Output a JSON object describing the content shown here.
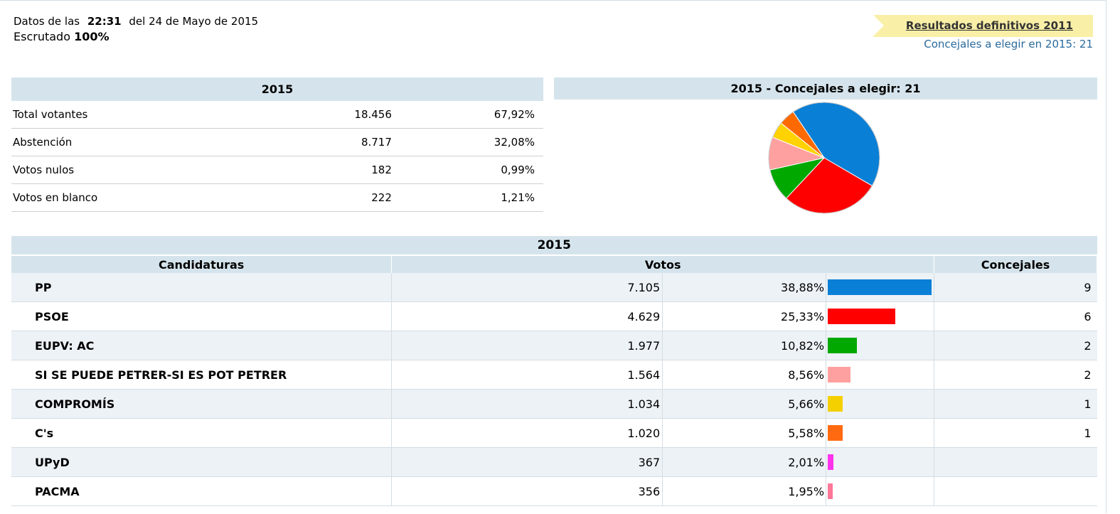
{
  "header": {
    "datos_prefix": "Datos de las",
    "time": "22:31",
    "datos_suffix": "del 24 de Mayo de 2015",
    "escrutado_label": "Escrutado",
    "escrutado_value": "100%",
    "ribbon_link": "Resultados definitivos 2011",
    "concejales_line": "Concejales a elegir en 2015: 21"
  },
  "summary": {
    "title": "2015",
    "rows": [
      {
        "label": "Total votantes",
        "value": "18.456",
        "pct": "67,92%"
      },
      {
        "label": "Abstención",
        "value": "8.717",
        "pct": "32,08%"
      },
      {
        "label": "Votos nulos",
        "value": "182",
        "pct": "0,99%"
      },
      {
        "label": "Votos en blanco",
        "value": "222",
        "pct": "1,21%"
      }
    ]
  },
  "pie": {
    "title": "2015 - Concejales a elegir: 21"
  },
  "chart_data": {
    "type": "pie",
    "title": "2015 - Concejales a elegir: 21",
    "categories": [
      "PP",
      "PSOE",
      "EUPV: AC",
      "SI SE PUEDE PETRER-SI ES POT PETRER",
      "COMPROMÍS",
      "C's"
    ],
    "values": [
      9,
      6,
      2,
      2,
      1,
      1
    ],
    "colors": [
      "#0a7fd6",
      "#ff0000",
      "#00a800",
      "#ffa0a0",
      "#ffd200",
      "#ff6a00"
    ]
  },
  "results": {
    "title": "2015",
    "col_candidaturas": "Candidaturas",
    "col_votos": "Votos",
    "col_concejales": "Concejales",
    "rows": [
      {
        "party": "PP",
        "votes": "7.105",
        "pct": "38,88%",
        "share": 38.88,
        "color": "#0a7fd6",
        "seats": "9"
      },
      {
        "party": "PSOE",
        "votes": "4.629",
        "pct": "25,33%",
        "share": 25.33,
        "color": "#ff0000",
        "seats": "6"
      },
      {
        "party": "EUPV: AC",
        "votes": "1.977",
        "pct": "10,82%",
        "share": 10.82,
        "color": "#00a800",
        "seats": "2"
      },
      {
        "party": "SI SE PUEDE PETRER-SI ES POT PETRER",
        "votes": "1.564",
        "pct": "8,56%",
        "share": 8.56,
        "color": "#ffa0a0",
        "seats": "2"
      },
      {
        "party": "COMPROMÍS",
        "votes": "1.034",
        "pct": "5,66%",
        "share": 5.66,
        "color": "#f5d000",
        "seats": "1"
      },
      {
        "party": "C's",
        "votes": "1.020",
        "pct": "5,58%",
        "share": 5.58,
        "color": "#ff6a10",
        "seats": "1"
      },
      {
        "party": "UPyD",
        "votes": "367",
        "pct": "2,01%",
        "share": 2.01,
        "color": "#ff33ee",
        "seats": ""
      },
      {
        "party": "PACMA",
        "votes": "356",
        "pct": "1,95%",
        "share": 1.95,
        "color": "#ff7799",
        "seats": ""
      }
    ]
  }
}
